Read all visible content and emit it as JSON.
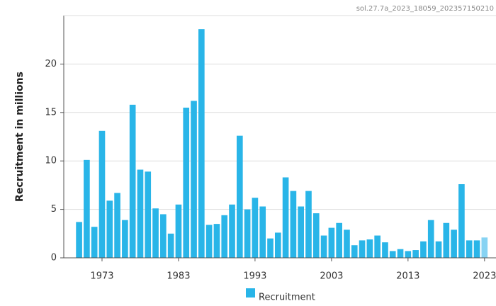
{
  "chart_data": {
    "type": "bar",
    "source_id": "sol.27.7a_2023_18059_202357150210",
    "y_label": "Recruitment in millions",
    "x": [
      1970,
      1971,
      1972,
      1973,
      1974,
      1975,
      1976,
      1977,
      1978,
      1979,
      1980,
      1981,
      1982,
      1983,
      1984,
      1985,
      1986,
      1987,
      1988,
      1989,
      1990,
      1991,
      1992,
      1993,
      1994,
      1995,
      1996,
      1997,
      1998,
      1999,
      2000,
      2001,
      2002,
      2003,
      2004,
      2005,
      2006,
      2007,
      2008,
      2009,
      2010,
      2011,
      2012,
      2013,
      2014,
      2015,
      2016,
      2017,
      2018,
      2019,
      2020,
      2021,
      2022,
      2023
    ],
    "series": [
      {
        "name": "Recruitment",
        "color": "#29b5e8",
        "last_bar_color": "#87d3f3",
        "values": [
          3.7,
          10.1,
          3.2,
          13.1,
          5.9,
          6.7,
          3.9,
          15.8,
          9.1,
          8.9,
          5.1,
          4.5,
          2.5,
          5.5,
          15.5,
          16.2,
          23.6,
          3.4,
          3.5,
          4.4,
          5.5,
          12.6,
          5.0,
          6.2,
          5.3,
          2.0,
          2.6,
          8.3,
          6.9,
          5.3,
          6.9,
          4.6,
          2.3,
          3.1,
          3.6,
          2.9,
          1.3,
          1.8,
          1.9,
          2.3,
          1.6,
          0.7,
          0.9,
          0.7,
          0.8,
          1.7,
          3.9,
          1.7,
          3.6,
          2.9,
          7.6,
          1.8,
          1.8,
          2.1
        ]
      }
    ],
    "xlim": [
      1968,
      2024.5
    ],
    "xticks": [
      1973,
      1983,
      1993,
      2003,
      2013,
      2023
    ],
    "ylim": [
      0,
      25
    ],
    "yticks": [
      0,
      5,
      10,
      15,
      20
    ],
    "grid": true
  }
}
